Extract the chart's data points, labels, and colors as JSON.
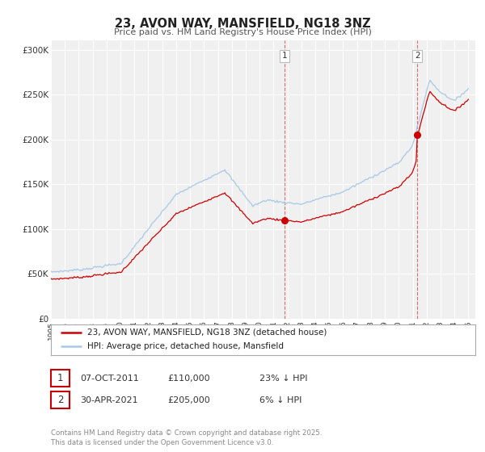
{
  "title": "23, AVON WAY, MANSFIELD, NG18 3NZ",
  "subtitle": "Price paid vs. HM Land Registry's House Price Index (HPI)",
  "hpi_color": "#a8c8e8",
  "price_color": "#cc0000",
  "marker_color": "#cc0000",
  "background_color": "#f0f0f0",
  "grid_color": "#ffffff",
  "ylim": [
    0,
    310000
  ],
  "xlim_start": 1995.0,
  "xlim_end": 2025.5,
  "yticks": [
    0,
    50000,
    100000,
    150000,
    200000,
    250000,
    300000
  ],
  "ytick_labels": [
    "£0",
    "£50K",
    "£100K",
    "£150K",
    "£200K",
    "£250K",
    "£300K"
  ],
  "xticks": [
    1995,
    1996,
    1997,
    1998,
    1999,
    2000,
    2001,
    2002,
    2003,
    2004,
    2005,
    2006,
    2007,
    2008,
    2009,
    2010,
    2011,
    2012,
    2013,
    2014,
    2015,
    2016,
    2017,
    2018,
    2019,
    2020,
    2021,
    2022,
    2023,
    2024,
    2025
  ],
  "sale1_x": 2011.77,
  "sale1_y": 110000,
  "sale1_label": "1",
  "sale2_x": 2021.33,
  "sale2_y": 205000,
  "sale2_label": "2",
  "legend_line1": "23, AVON WAY, MANSFIELD, NG18 3NZ (detached house)",
  "legend_line2": "HPI: Average price, detached house, Mansfield",
  "annotation1_date": "07-OCT-2011",
  "annotation1_price": "£110,000",
  "annotation1_hpi": "23% ↓ HPI",
  "annotation2_date": "30-APR-2021",
  "annotation2_price": "£205,000",
  "annotation2_hpi": "6% ↓ HPI",
  "footer": "Contains HM Land Registry data © Crown copyright and database right 2025.\nThis data is licensed under the Open Government Licence v3.0."
}
